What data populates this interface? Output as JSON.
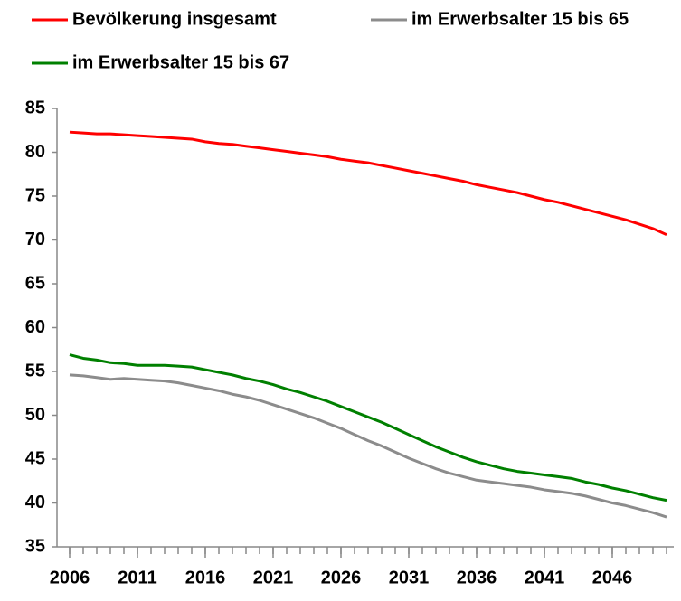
{
  "chart_data": {
    "type": "line",
    "x": [
      2006,
      2007,
      2008,
      2009,
      2010,
      2011,
      2012,
      2013,
      2014,
      2015,
      2016,
      2017,
      2018,
      2019,
      2020,
      2021,
      2022,
      2023,
      2024,
      2025,
      2026,
      2027,
      2028,
      2029,
      2030,
      2031,
      2032,
      2033,
      2034,
      2035,
      2036,
      2037,
      2038,
      2039,
      2040,
      2041,
      2042,
      2043,
      2044,
      2045,
      2046,
      2047,
      2048,
      2049,
      2050
    ],
    "series": [
      {
        "name": "Bevölkerung insgesamt",
        "color": "#ff0000",
        "values": [
          82.3,
          82.2,
          82.1,
          82.1,
          82.0,
          81.9,
          81.8,
          81.7,
          81.6,
          81.5,
          81.2,
          81.0,
          80.9,
          80.7,
          80.5,
          80.3,
          80.1,
          79.9,
          79.7,
          79.5,
          79.2,
          79.0,
          78.8,
          78.5,
          78.2,
          77.9,
          77.6,
          77.3,
          77.0,
          76.7,
          76.3,
          76.0,
          75.7,
          75.4,
          75.0,
          74.6,
          74.3,
          73.9,
          73.5,
          73.1,
          72.7,
          72.3,
          71.8,
          71.3,
          70.6
        ]
      },
      {
        "name": "im Erwerbsalter 15 bis 65",
        "color": "#8c8c8c",
        "values": [
          54.6,
          54.5,
          54.3,
          54.1,
          54.2,
          54.1,
          54.0,
          53.9,
          53.7,
          53.4,
          53.1,
          52.8,
          52.4,
          52.1,
          51.7,
          51.2,
          50.7,
          50.2,
          49.7,
          49.1,
          48.5,
          47.8,
          47.1,
          46.5,
          45.8,
          45.1,
          44.5,
          43.9,
          43.4,
          43.0,
          42.6,
          42.4,
          42.2,
          42.0,
          41.8,
          41.5,
          41.3,
          41.1,
          40.8,
          40.4,
          40.0,
          39.7,
          39.3,
          38.9,
          38.4
        ]
      },
      {
        "name": "im Erwerbsalter 15 bis 67",
        "color": "#008000",
        "values": [
          56.9,
          56.5,
          56.3,
          56.0,
          55.9,
          55.7,
          55.7,
          55.7,
          55.6,
          55.5,
          55.2,
          54.9,
          54.6,
          54.2,
          53.9,
          53.5,
          53.0,
          52.6,
          52.1,
          51.6,
          51.0,
          50.4,
          49.8,
          49.2,
          48.5,
          47.8,
          47.1,
          46.4,
          45.8,
          45.2,
          44.7,
          44.3,
          43.9,
          43.6,
          43.4,
          43.2,
          43.0,
          42.8,
          42.4,
          42.1,
          41.7,
          41.4,
          41.0,
          40.6,
          40.3
        ]
      }
    ],
    "xlim": [
      2006,
      2050
    ],
    "xticks": [
      2006,
      2011,
      2016,
      2021,
      2026,
      2031,
      2036,
      2041,
      2046
    ],
    "ylim": [
      35,
      85
    ],
    "yticks": [
      35,
      40,
      45,
      50,
      55,
      60,
      65,
      70,
      75,
      80,
      85
    ]
  }
}
